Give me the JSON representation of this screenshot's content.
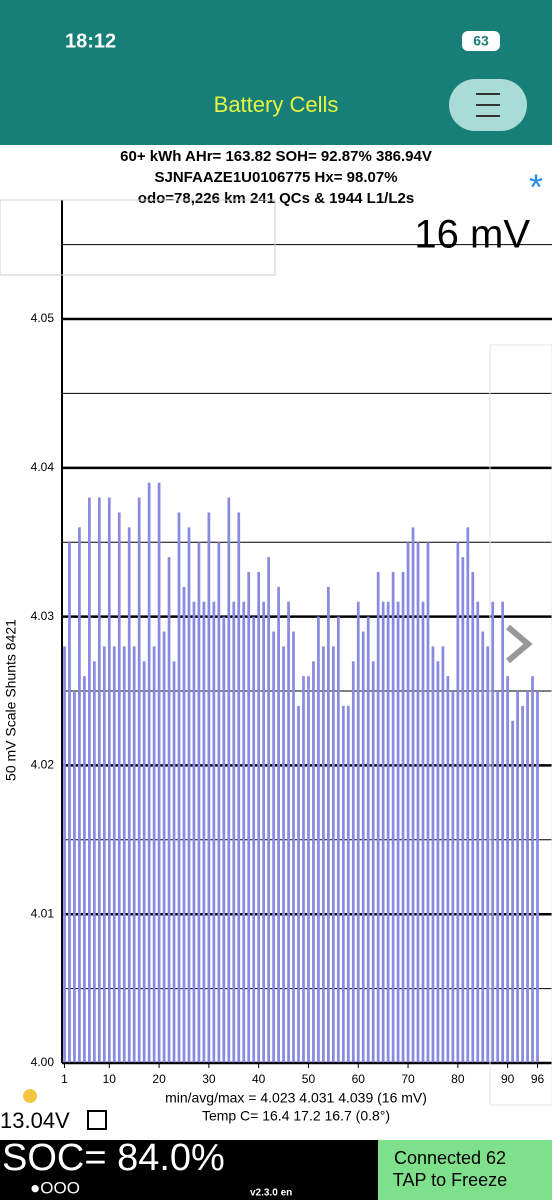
{
  "status": {
    "time": "18:12",
    "battery": "63"
  },
  "header": {
    "title": "Battery Cells"
  },
  "info": [
    "60+ kWh  AHr= 163.82  SOH= 92.87%   386.94V",
    "SJNFAAZE1U0106775   Hx= 98.07%",
    "odo=78,226 km 241 QCs & 1944 L1/L2s"
  ],
  "spread_label": "16 mV",
  "star": "*",
  "chart_data": {
    "type": "bar",
    "y_label": "50 mV Scale   Shunts 8421",
    "x": [
      1,
      2,
      3,
      4,
      5,
      6,
      7,
      8,
      9,
      10,
      11,
      12,
      13,
      14,
      15,
      16,
      17,
      18,
      19,
      20,
      21,
      22,
      23,
      24,
      25,
      26,
      27,
      28,
      29,
      30,
      31,
      32,
      33,
      34,
      35,
      36,
      37,
      38,
      39,
      40,
      41,
      42,
      43,
      44,
      45,
      46,
      47,
      48,
      49,
      50,
      51,
      52,
      53,
      54,
      55,
      56,
      57,
      58,
      59,
      60,
      61,
      62,
      63,
      64,
      65,
      66,
      67,
      68,
      69,
      70,
      71,
      72,
      73,
      74,
      75,
      76,
      77,
      78,
      79,
      80,
      81,
      82,
      83,
      84,
      85,
      86,
      87,
      88,
      89,
      90,
      91,
      92,
      93,
      94,
      95,
      96
    ],
    "values": [
      4.028,
      4.035,
      4.025,
      4.036,
      4.026,
      4.038,
      4.027,
      4.038,
      4.028,
      4.038,
      4.028,
      4.037,
      4.028,
      4.036,
      4.028,
      4.038,
      4.027,
      4.039,
      4.028,
      4.039,
      4.029,
      4.034,
      4.027,
      4.037,
      4.032,
      4.036,
      4.031,
      4.035,
      4.031,
      4.037,
      4.031,
      4.035,
      4.03,
      4.038,
      4.031,
      4.037,
      4.031,
      4.033,
      4.03,
      4.033,
      4.031,
      4.034,
      4.029,
      4.032,
      4.028,
      4.031,
      4.029,
      4.024,
      4.026,
      4.026,
      4.027,
      4.03,
      4.028,
      4.032,
      4.028,
      4.03,
      4.024,
      4.024,
      4.027,
      4.031,
      4.029,
      4.03,
      4.027,
      4.033,
      4.031,
      4.031,
      4.033,
      4.031,
      4.033,
      4.035,
      4.036,
      4.035,
      4.031,
      4.035,
      4.028,
      4.027,
      4.028,
      4.026,
      4.025,
      4.035,
      4.034,
      4.036,
      4.033,
      4.031,
      4.029,
      4.028,
      4.031,
      4.025,
      4.031,
      4.026,
      4.023,
      4.025,
      4.024,
      4.025,
      4.026,
      4.025
    ],
    "color": "#8a8ae0",
    "xlim": [
      0.5,
      96.5
    ],
    "xticks": [
      1,
      10,
      20,
      30,
      40,
      50,
      60,
      70,
      80,
      90,
      96
    ],
    "ylim": [
      4.0,
      4.058
    ],
    "yticks": [
      {
        "value": 4.0,
        "label": "4.00"
      },
      4.01,
      4.02,
      4.03,
      4.04,
      4.05
    ],
    "minor_grid": [
      4.005,
      4.015,
      4.025,
      4.035,
      4.045,
      4.055
    ],
    "grid": true
  },
  "footer": {
    "stats": "min/avg/max = 4.023 4.031 4.039  (16 mV)",
    "temp": "Temp C= 16.4  17.2  16.7  (0.8°)",
    "voltage": "13.04V",
    "soc": "SOC= 84.0%",
    "dots": "●OOO",
    "version": "v2.3.0 en",
    "connected": "Connected 62",
    "freeze": "TAP to Freeze"
  }
}
